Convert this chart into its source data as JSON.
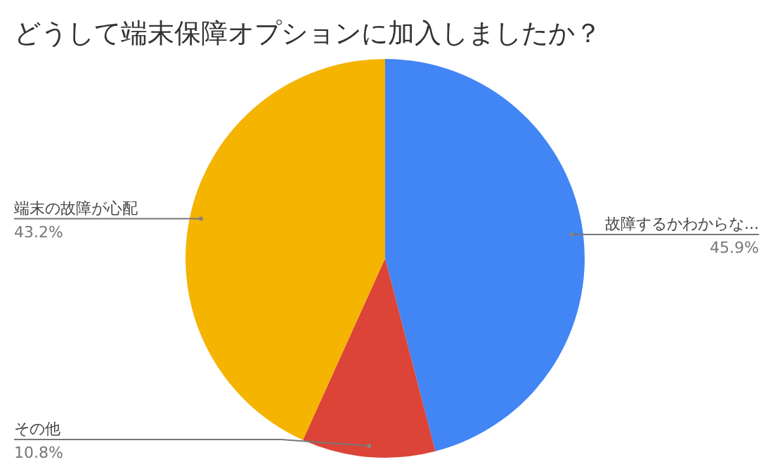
{
  "chart_data": {
    "type": "pie",
    "title": "どうして端末保障オプションに加入しましたか？",
    "categories": [
      "故障するかわからな...",
      "その他",
      "端末の故障が心配"
    ],
    "values": [
      45.9,
      10.8,
      43.2
    ],
    "colors": [
      "#4285f4",
      "#db4437",
      "#f4b400"
    ],
    "value_labels": [
      "45.9%",
      "10.8%",
      "43.2%"
    ],
    "legend": false
  }
}
